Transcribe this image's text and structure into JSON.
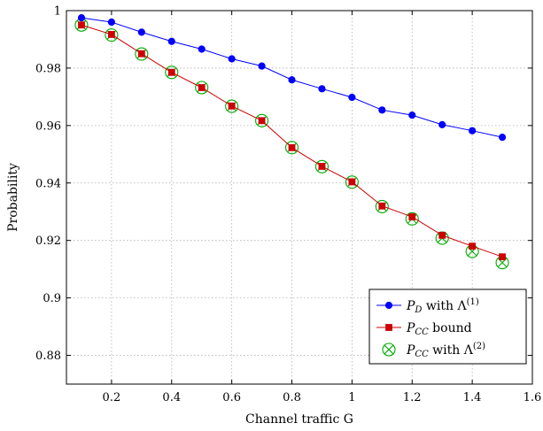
{
  "chart_data": {
    "type": "line",
    "xlabel": "Channel traffic G",
    "ylabel": "Probability",
    "xlim": [
      0.05,
      1.6
    ],
    "ylim": [
      0.87,
      1.0
    ],
    "x_ticks": [
      "0.2",
      "0.4",
      "0.6",
      "0.8",
      "1",
      "1.2",
      "1.4",
      "1.6"
    ],
    "y_ticks": [
      "0.88",
      "0.9",
      "0.92",
      "0.94",
      "0.96",
      "0.98",
      "1"
    ],
    "x_tick_values": [
      0.2,
      0.4,
      0.6,
      0.8,
      1.0,
      1.2,
      1.4,
      1.6
    ],
    "y_tick_values": [
      0.88,
      0.9,
      0.92,
      0.94,
      0.96,
      0.98,
      1.0
    ],
    "grid": true,
    "legend_position": "bottom-right",
    "x": [
      0.1,
      0.2,
      0.3,
      0.4,
      0.5,
      0.6,
      0.7,
      0.8,
      0.9,
      1.0,
      1.1,
      1.2,
      1.3,
      1.4,
      1.5
    ],
    "series": [
      {
        "name": "P_D with Λ^(1)",
        "legend_main": "P",
        "legend_sub": "D",
        "legend_rest": " with Λ",
        "legend_sup": "(1)",
        "color": "#0000ff",
        "marker": "circle",
        "line": true,
        "values": [
          0.9975,
          0.996,
          0.9925,
          0.9893,
          0.9866,
          0.9832,
          0.9807,
          0.9759,
          0.9728,
          0.9698,
          0.9654,
          0.9636,
          0.9603,
          0.9582,
          0.9559
        ]
      },
      {
        "name": "P_CC bound",
        "legend_main": "P",
        "legend_sub": "CC",
        "legend_rest": " bound",
        "legend_sup": "",
        "color": "#cc0000",
        "marker": "square",
        "line": true,
        "values": [
          0.995,
          0.9917,
          0.985,
          0.9785,
          0.9732,
          0.9668,
          0.9617,
          0.9523,
          0.9458,
          0.9404,
          0.932,
          0.9282,
          0.9218,
          0.918,
          0.9143
        ]
      },
      {
        "name": "P_CC with Λ^(2)",
        "legend_main": "P",
        "legend_sub": "CC",
        "legend_rest": " with Λ",
        "legend_sup": "(2)",
        "color": "#00aa00",
        "marker": "circled-x",
        "line": false,
        "values": [
          0.995,
          0.9915,
          0.9849,
          0.9785,
          0.9732,
          0.9667,
          0.9617,
          0.9523,
          0.9457,
          0.9403,
          0.9318,
          0.9275,
          0.9208,
          0.9162,
          0.9123
        ]
      }
    ]
  }
}
